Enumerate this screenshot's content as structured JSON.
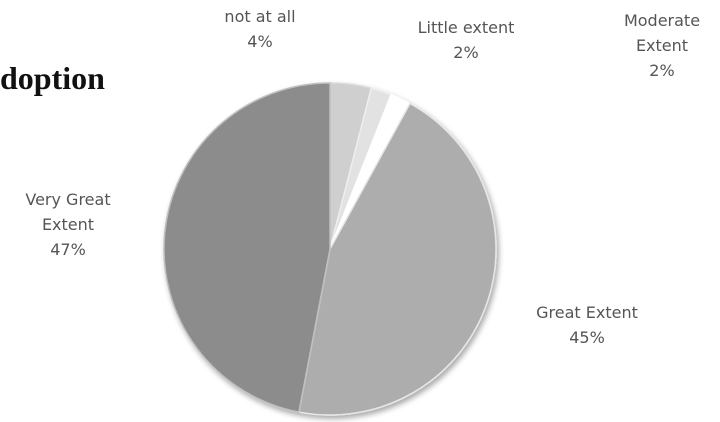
{
  "heading": "doption",
  "chart_data": {
    "type": "pie",
    "start_angle_deg": 0,
    "direction": "clockwise",
    "slices": [
      {
        "name": "not at all",
        "value": 4,
        "label": "4%",
        "color": "#cfcfcf",
        "edge": "#d9d9d9"
      },
      {
        "name": "Little extent",
        "value": 2,
        "label": "2%",
        "color": "#e2e2e2",
        "edge": "#eeeeee"
      },
      {
        "name": "Moderate Extent",
        "value": 2,
        "label": "2%",
        "color": "#ffffff",
        "edge": "#ffffff"
      },
      {
        "name": "Great Extent",
        "value": 45,
        "label": "45%",
        "color": "#adadad",
        "edge": "#e6e6e6"
      },
      {
        "name": "Very Great Extent",
        "value": 47,
        "label": "47%",
        "color": "#8c8c8c",
        "edge": "#bfbfbf"
      }
    ],
    "label_lines": [
      [
        "not at all",
        "4%"
      ],
      [
        "Little extent",
        "2%"
      ],
      [
        "Moderate",
        "Extent",
        "2%"
      ],
      [
        "Great Extent",
        "45%"
      ],
      [
        "Very Great",
        "Extent",
        "47%"
      ]
    ]
  }
}
